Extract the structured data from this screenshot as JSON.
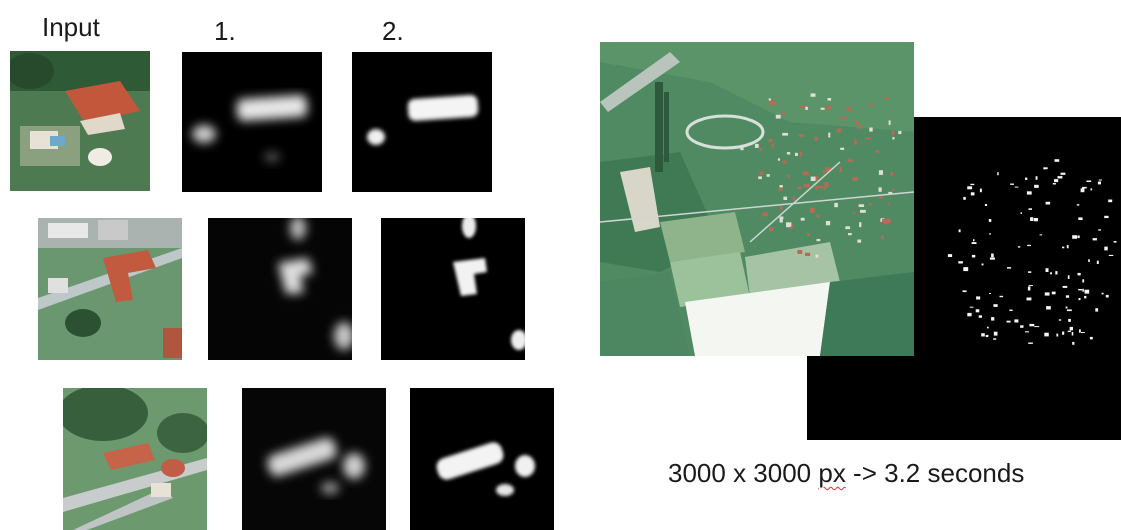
{
  "column_labels": {
    "input": "Input",
    "step1": "1.",
    "step2": "2."
  },
  "caption": {
    "before": "3000 x 3000 ",
    "px": "px",
    "after": " -> 3.2 seconds"
  },
  "rows": [
    {
      "input": "input-aerial-1",
      "mask1": "blurry-mask-1",
      "mask2": "refined-mask-1"
    },
    {
      "input": "input-aerial-2",
      "mask1": "blurry-mask-2",
      "mask2": "refined-mask-2"
    },
    {
      "input": "input-aerial-3",
      "mask1": "blurry-mask-3",
      "mask2": "refined-mask-3"
    }
  ],
  "large_images": {
    "satellite": "large-satellite-image",
    "mask": "large-building-mask"
  }
}
